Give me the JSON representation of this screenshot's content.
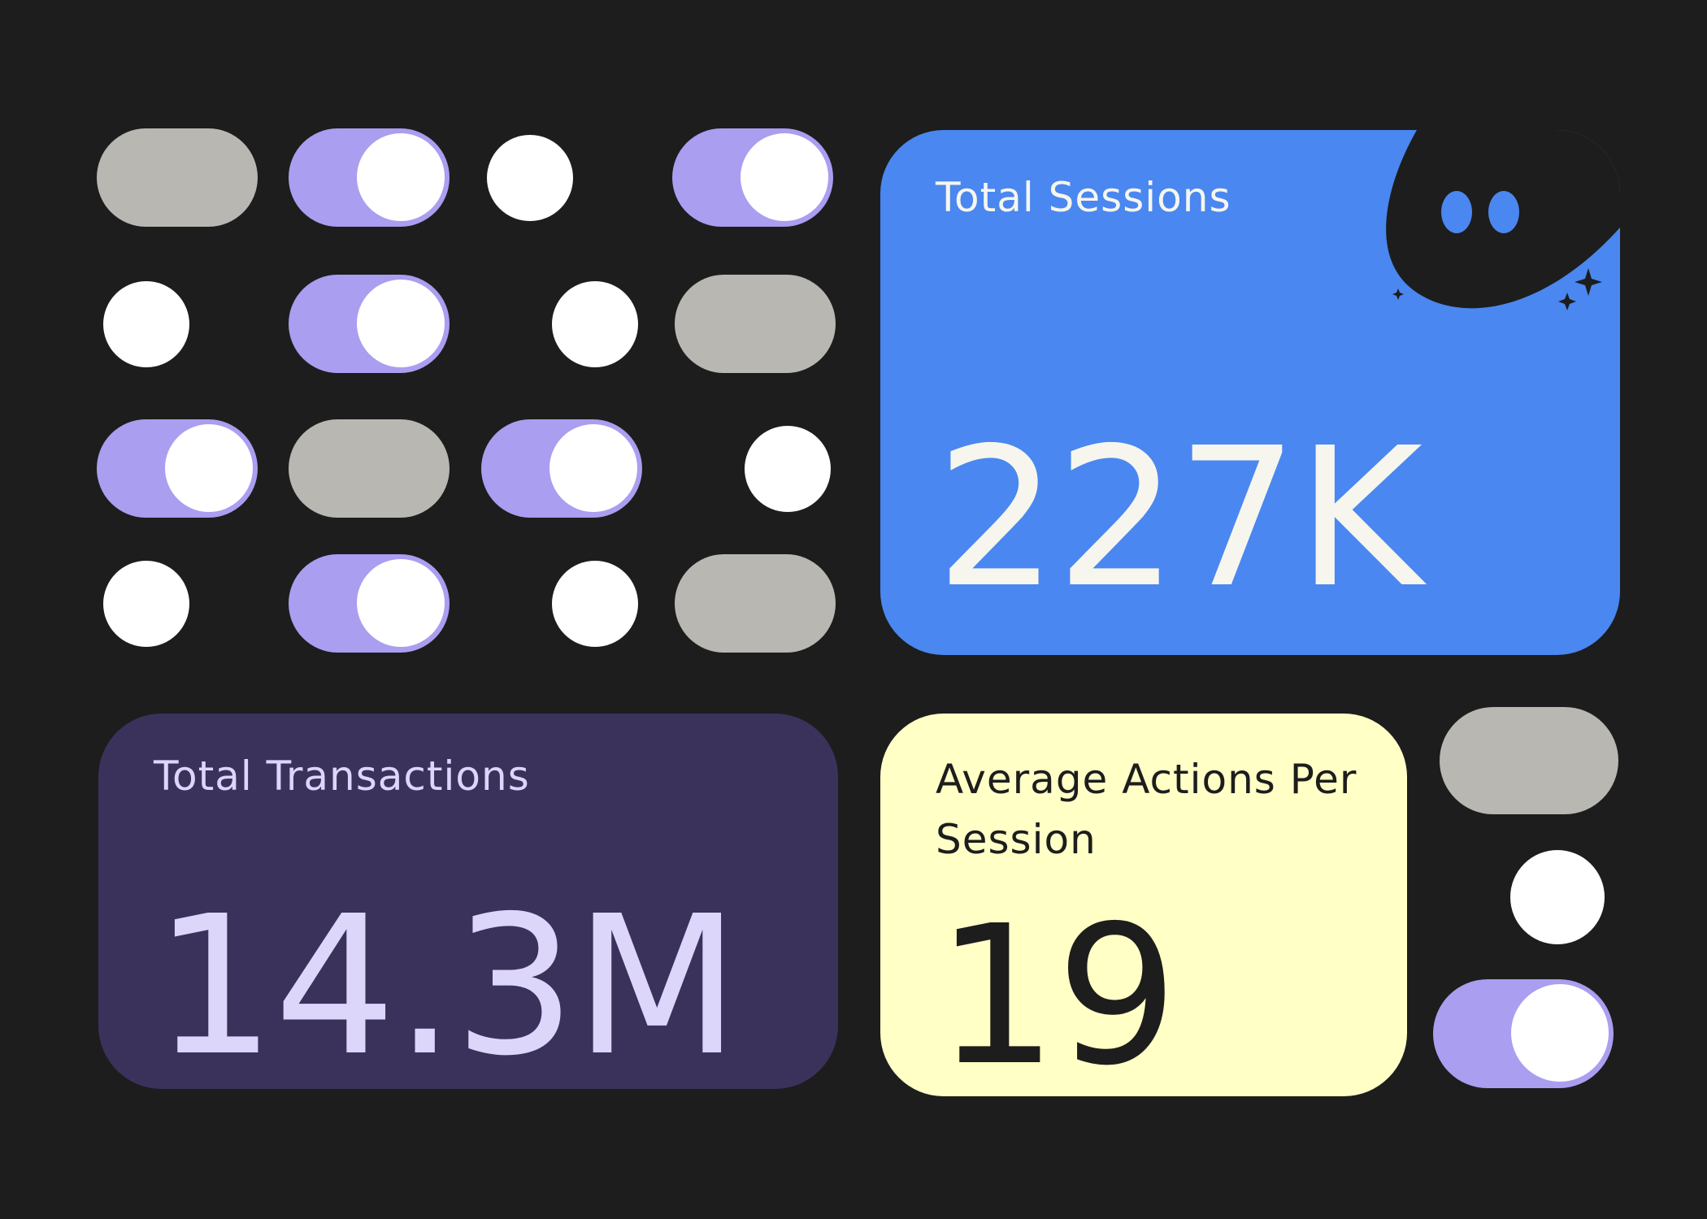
{
  "cards": {
    "sessions": {
      "label": "Total Sessions",
      "value": "227K"
    },
    "transactions": {
      "label": "Total Transactions",
      "value": "14.3M"
    },
    "average": {
      "label": "Average Actions Per Session",
      "value": "19"
    }
  },
  "colors": {
    "background": "#1d1d1d",
    "toggle_on": "#a99ef0",
    "toggle_off": "#b8b7b2",
    "knob": "#ffffff",
    "sessions_card": "#4a87f0",
    "transactions_card": "#3b325c",
    "average_card": "#ffffc6"
  },
  "icons": [
    "toggle-switch-icon",
    "dot-icon",
    "smiley-mascot-icon",
    "sparkle-icon"
  ],
  "toggles": [
    {
      "id": "r1c1",
      "state": "off"
    },
    {
      "id": "r1c2",
      "state": "on"
    },
    {
      "id": "r1c4",
      "state": "on"
    },
    {
      "id": "r2c2",
      "state": "on"
    },
    {
      "id": "r2c4",
      "state": "off"
    },
    {
      "id": "r3c1",
      "state": "on"
    },
    {
      "id": "r3c2",
      "state": "off"
    },
    {
      "id": "r3c3",
      "state": "on"
    },
    {
      "id": "r4c2",
      "state": "on"
    },
    {
      "id": "r4c4",
      "state": "off"
    },
    {
      "id": "side1",
      "state": "off"
    },
    {
      "id": "side3",
      "state": "on"
    }
  ]
}
